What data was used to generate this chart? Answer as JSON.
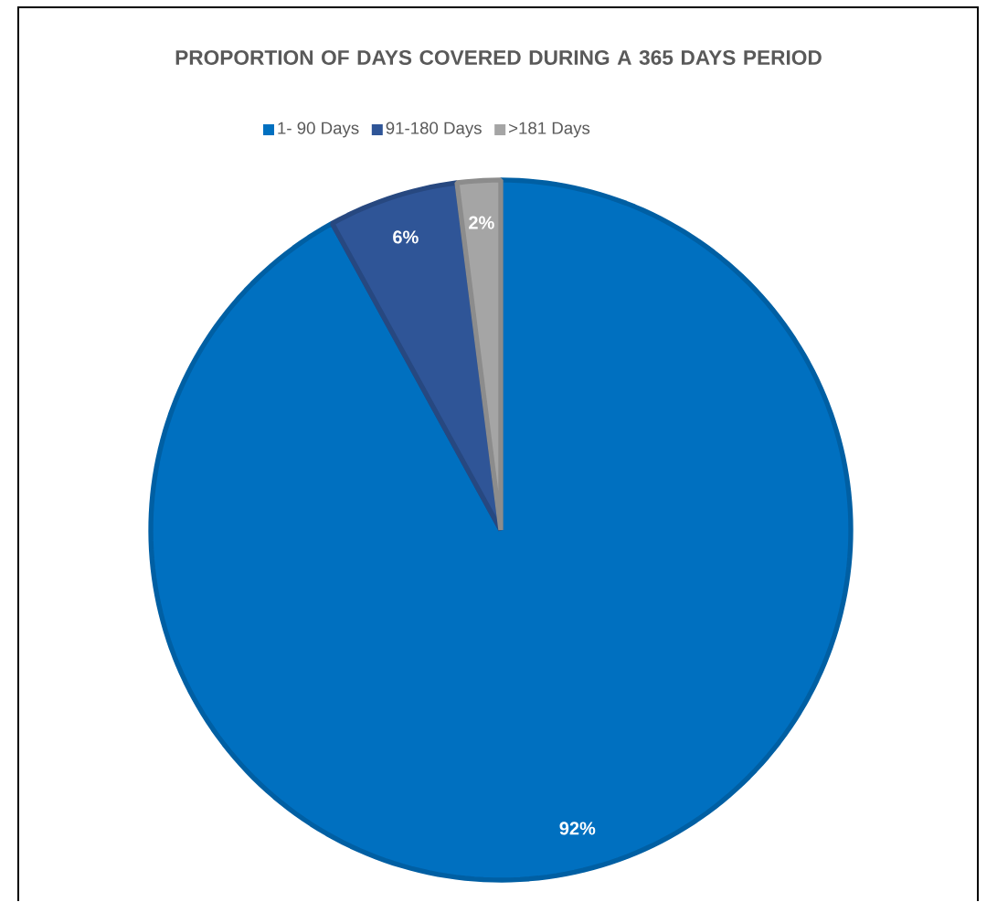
{
  "chart_data": {
    "type": "pie",
    "title": "PROPORTION OF DAYS COVERED DURING A 365 DAYS PERIOD",
    "categories": [
      "1- 90 Days",
      "91-180 Days",
      ">181 Days"
    ],
    "values": [
      92,
      6,
      2
    ],
    "colors": [
      "#0070c0",
      "#2f5597",
      "#a5a5a5"
    ],
    "value_labels": [
      "92%",
      "6%",
      "2%"
    ],
    "legend": "top"
  }
}
